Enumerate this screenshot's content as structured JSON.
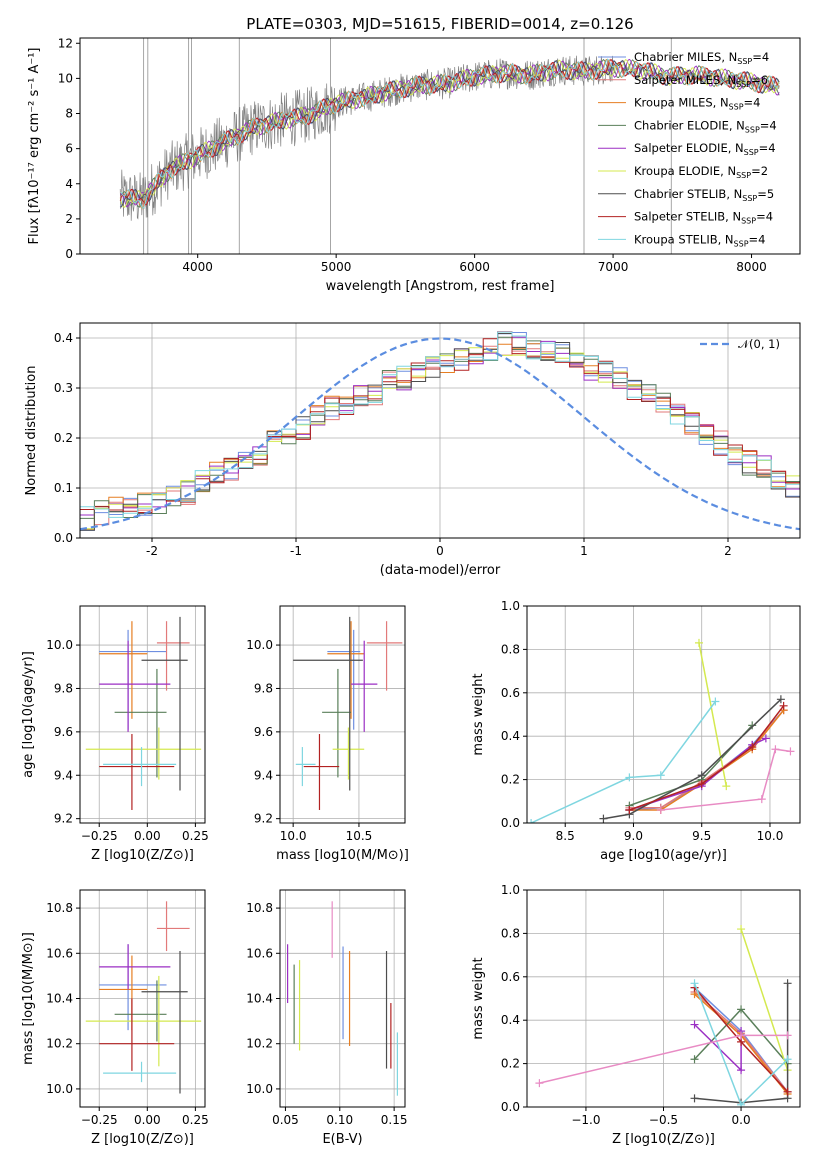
{
  "chart_data": [
    {
      "id": "spectrum",
      "type": "line",
      "title": "PLATE=0303, MJD=51615, FIBERID=0014, z=0.126",
      "xlabel": "wavelength [Angstrom, rest frame]",
      "ylabel": "Flux [fλ10⁻¹⁷ erg cm⁻² s⁻¹ A⁻¹]",
      "xlim": [
        3150,
        8350
      ],
      "ylim": [
        0,
        12.3
      ],
      "xticks": [
        4000,
        5000,
        6000,
        7000,
        8000
      ],
      "yticks": [
        0,
        2,
        4,
        6,
        8,
        10,
        12
      ],
      "legend_position": "right",
      "data_series": {
        "name": "data",
        "color": "#808080",
        "x": [
          3450,
          3600,
          3800,
          4000,
          4200,
          4400,
          4600,
          4800,
          5000,
          5200,
          5400,
          5600,
          5800,
          6000,
          6200,
          6400,
          6600,
          6800,
          7000,
          7200,
          7400,
          7600,
          7800,
          8000,
          8200
        ],
        "y": [
          3.2,
          3.1,
          4.8,
          5.6,
          6.4,
          7.2,
          7.6,
          7.9,
          8.6,
          8.9,
          9.3,
          9.6,
          9.7,
          10.1,
          10.3,
          10.2,
          10.5,
          10.4,
          10.6,
          10.5,
          10.1,
          10.2,
          10.0,
          9.8,
          9.5
        ]
      },
      "series": [
        {
          "name": "Chabrier MILES",
          "nssp": "4",
          "color": "#6f8fe0"
        },
        {
          "name": "Salpeter MILES",
          "nssp": "6",
          "color": "#e27a7a"
        },
        {
          "name": "Kroupa MILES",
          "nssp": "4",
          "color": "#e67e22"
        },
        {
          "name": "Chabrier ELODIE",
          "nssp": "4",
          "color": "#5a7f5a"
        },
        {
          "name": "Salpeter ELODIE",
          "nssp": "4",
          "color": "#9b2fc4"
        },
        {
          "name": "Kroupa ELODIE",
          "nssp": "2",
          "color": "#d4e94f"
        },
        {
          "name": "Chabrier STELIB",
          "nssp": "5",
          "color": "#4d4d4d"
        },
        {
          "name": "Salpeter STELIB",
          "nssp": "4",
          "color": "#b22222"
        },
        {
          "name": "Kroupa STELIB",
          "nssp": "4",
          "color": "#7fd6e0"
        }
      ]
    },
    {
      "id": "residuals",
      "type": "line",
      "xlabel": "(data-model)/error",
      "ylabel": "Normed distribution",
      "xlim": [
        -2.5,
        2.5
      ],
      "ylim": [
        0,
        0.43
      ],
      "xticks": [
        -2,
        -1,
        0,
        1,
        2
      ],
      "yticks": [
        0.0,
        0.1,
        0.2,
        0.3,
        0.4
      ],
      "grid": true,
      "legend": [
        {
          "label": "𝒩(0, 1)",
          "color": "#5b8de0",
          "style": "dashed"
        }
      ],
      "legend_position": "top-right",
      "hist_bin_width": 0.1,
      "hist_start": -2.5,
      "hist_values": [
        0.04,
        0.05,
        0.06,
        0.06,
        0.07,
        0.07,
        0.08,
        0.09,
        0.11,
        0.13,
        0.14,
        0.15,
        0.17,
        0.19,
        0.21,
        0.22,
        0.24,
        0.26,
        0.27,
        0.28,
        0.29,
        0.31,
        0.32,
        0.33,
        0.34,
        0.35,
        0.36,
        0.37,
        0.38,
        0.39,
        0.39,
        0.38,
        0.38,
        0.37,
        0.36,
        0.34,
        0.33,
        0.32,
        0.3,
        0.29,
        0.27,
        0.25,
        0.23,
        0.21,
        0.19,
        0.17,
        0.15,
        0.14,
        0.12,
        0.1
      ]
    },
    {
      "id": "age_vs_Z",
      "type": "scatter",
      "xlabel": "Z [log10(Z/Z⊙)]",
      "ylabel": "age  [log10(age/yr)]",
      "xlim": [
        -0.35,
        0.3
      ],
      "ylim": [
        9.18,
        10.18
      ],
      "xticks": [
        "−0.25",
        "0.00",
        "0.25"
      ],
      "xtick_values": [
        -0.25,
        0.0,
        0.25
      ],
      "yticks": [
        9.2,
        9.4,
        9.6,
        9.8,
        10.0
      ],
      "grid": true,
      "points": [
        {
          "color": "#6f8fe0",
          "x": -0.1,
          "xerr": [
            0.15,
            0.2
          ],
          "y": 9.97,
          "yerr": [
            0.36,
            0.1
          ]
        },
        {
          "color": "#e27a7a",
          "x": 0.1,
          "xerr": [
            0.05,
            0.12
          ],
          "y": 10.01,
          "yerr": [
            0.22,
            0.1
          ]
        },
        {
          "color": "#e67e22",
          "x": -0.08,
          "xerr": [
            0.17,
            0.08
          ],
          "y": 9.96,
          "yerr": [
            0.3,
            0.15
          ]
        },
        {
          "color": "#5a7f5a",
          "x": 0.05,
          "xerr": [
            0.22,
            0.05
          ],
          "y": 9.69,
          "yerr": [
            0.3,
            0.2
          ]
        },
        {
          "color": "#9b2fc4",
          "x": -0.1,
          "xerr": [
            0.15,
            0.22
          ],
          "y": 9.82,
          "yerr": [
            0.22,
            0.2
          ]
        },
        {
          "color": "#d4e94f",
          "x": 0.06,
          "xerr": [
            0.38,
            0.22
          ],
          "y": 9.52,
          "yerr": [
            0.14,
            0.1
          ]
        },
        {
          "color": "#4d4d4d",
          "x": 0.17,
          "xerr": [
            0.2,
            0.04
          ],
          "y": 9.93,
          "yerr": [
            0.6,
            0.2
          ]
        },
        {
          "color": "#b22222",
          "x": -0.08,
          "xerr": [
            0.17,
            0.22
          ],
          "y": 9.44,
          "yerr": [
            0.2,
            0.15
          ]
        },
        {
          "color": "#7fd6e0",
          "x": -0.03,
          "xerr": [
            0.2,
            0.18
          ],
          "y": 9.45,
          "yerr": [
            0.1,
            0.08
          ]
        }
      ]
    },
    {
      "id": "age_vs_mass",
      "type": "scatter",
      "xlabel": "mass [log10(M/M⊙)]",
      "xlim": [
        9.9,
        10.85
      ],
      "ylim": [
        9.18,
        10.18
      ],
      "xticks": [
        "10.0",
        "10.5"
      ],
      "xtick_values": [
        10.0,
        10.5
      ],
      "yticks": [
        9.2,
        9.4,
        9.6,
        9.8,
        10.0
      ],
      "grid": true,
      "points": [
        {
          "color": "#6f8fe0",
          "x": 10.46,
          "xerr": [
            0.2,
            0.05
          ],
          "y": 9.97,
          "yerr": [
            0.36,
            0.1
          ]
        },
        {
          "color": "#e27a7a",
          "x": 10.71,
          "xerr": [
            0.15,
            0.12
          ],
          "y": 10.01,
          "yerr": [
            0.22,
            0.1
          ]
        },
        {
          "color": "#e67e22",
          "x": 10.44,
          "xerr": [
            0.18,
            0.1
          ],
          "y": 9.96,
          "yerr": [
            0.3,
            0.15
          ]
        },
        {
          "color": "#5a7f5a",
          "x": 10.34,
          "xerr": [
            0.12,
            0.1
          ],
          "y": 9.69,
          "yerr": [
            0.3,
            0.2
          ]
        },
        {
          "color": "#9b2fc4",
          "x": 10.54,
          "xerr": [
            0.1,
            0.1
          ],
          "y": 9.82,
          "yerr": [
            0.22,
            0.2
          ]
        },
        {
          "color": "#d4e94f",
          "x": 10.42,
          "xerr": [
            0.12,
            0.12
          ],
          "y": 9.52,
          "yerr": [
            0.14,
            0.1
          ]
        },
        {
          "color": "#4d4d4d",
          "x": 10.43,
          "xerr": [
            0.43,
            0.1
          ],
          "y": 9.93,
          "yerr": [
            0.6,
            0.2
          ]
        },
        {
          "color": "#b22222",
          "x": 10.2,
          "xerr": [
            0.12,
            0.15
          ],
          "y": 9.44,
          "yerr": [
            0.2,
            0.15
          ]
        },
        {
          "color": "#7fd6e0",
          "x": 10.07,
          "xerr": [
            0.05,
            0.1
          ],
          "y": 9.45,
          "yerr": [
            0.1,
            0.08
          ]
        }
      ]
    },
    {
      "id": "weight_vs_age",
      "type": "line",
      "xlabel": "age  [log10(age/yr)]",
      "ylabel": "mass weight",
      "xlim": [
        8.22,
        10.22
      ],
      "ylim": [
        0,
        1.0
      ],
      "xticks": [
        "8.5",
        "9.0",
        "9.5",
        "10.0"
      ],
      "xtick_values": [
        8.5,
        9.0,
        9.5,
        10.0
      ],
      "yticks": [
        0.0,
        0.2,
        0.4,
        0.6,
        0.8,
        1.0
      ],
      "grid": true,
      "series": [
        {
          "color": "#6f8fe0",
          "x": [
            8.97,
            9.2,
            9.5,
            9.87,
            10.1
          ],
          "y": [
            0.06,
            0.07,
            0.18,
            0.36,
            0.52
          ]
        },
        {
          "color": "#e27a7a",
          "x": [
            8.97,
            9.2,
            9.5,
            9.87,
            10.1
          ],
          "y": [
            0.07,
            0.07,
            0.19,
            0.35,
            0.52
          ]
        },
        {
          "color": "#e67e22",
          "x": [
            8.97,
            9.2,
            9.5,
            9.87,
            10.1
          ],
          "y": [
            0.06,
            0.06,
            0.18,
            0.34,
            0.52
          ]
        },
        {
          "color": "#5a7f5a",
          "x": [
            8.97,
            9.5,
            9.87
          ],
          "y": [
            0.08,
            0.2,
            0.45
          ]
        },
        {
          "color": "#9b2fc4",
          "x": [
            8.97,
            9.5,
            9.87,
            9.97
          ],
          "y": [
            0.06,
            0.17,
            0.36,
            0.39
          ]
        },
        {
          "color": "#d4e94f",
          "x": [
            9.48,
            9.68
          ],
          "y": [
            0.83,
            0.17
          ]
        },
        {
          "color": "#4d4d4d",
          "x": [
            8.78,
            8.97,
            9.5,
            10.08
          ],
          "y": [
            0.02,
            0.04,
            0.22,
            0.57
          ]
        },
        {
          "color": "#b22222",
          "x": [
            8.97,
            9.5,
            9.87,
            10.1
          ],
          "y": [
            0.06,
            0.18,
            0.35,
            0.54
          ]
        },
        {
          "color": "#7fd6e0",
          "x": [
            8.25,
            8.97,
            9.2,
            9.6
          ],
          "y": [
            0.0,
            0.21,
            0.22,
            0.56
          ]
        },
        {
          "color": "#e88bc4",
          "x": [
            9.2,
            9.94,
            10.04,
            10.15
          ],
          "y": [
            0.06,
            0.11,
            0.34,
            0.33
          ]
        }
      ]
    },
    {
      "id": "mass_vs_Z",
      "type": "scatter",
      "xlabel": "Z [log10(Z/Z⊙)]",
      "ylabel": "mass [log10(M/M⊙)]",
      "xlim": [
        -0.35,
        0.3
      ],
      "ylim": [
        9.92,
        10.88
      ],
      "xticks": [
        "−0.25",
        "0.00",
        "0.25"
      ],
      "xtick_values": [
        -0.25,
        0.0,
        0.25
      ],
      "yticks": [
        10.0,
        10.2,
        10.4,
        10.6,
        10.8
      ],
      "grid": true,
      "points": [
        {
          "color": "#6f8fe0",
          "x": -0.1,
          "xerr": [
            0.15,
            0.2
          ],
          "y": 10.46,
          "yerr": [
            0.2,
            0.18
          ]
        },
        {
          "color": "#e27a7a",
          "x": 0.1,
          "xerr": [
            0.05,
            0.12
          ],
          "y": 10.71,
          "yerr": [
            0.1,
            0.12
          ]
        },
        {
          "color": "#e67e22",
          "x": -0.08,
          "xerr": [
            0.17,
            0.08
          ],
          "y": 10.44,
          "yerr": [
            0.18,
            0.15
          ]
        },
        {
          "color": "#5a7f5a",
          "x": 0.05,
          "xerr": [
            0.22,
            0.05
          ],
          "y": 10.33,
          "yerr": [
            0.12,
            0.15
          ]
        },
        {
          "color": "#9b2fc4",
          "x": -0.1,
          "xerr": [
            0.15,
            0.22
          ],
          "y": 10.54,
          "yerr": [
            0.1,
            0.1
          ]
        },
        {
          "color": "#d4e94f",
          "x": 0.06,
          "xerr": [
            0.38,
            0.22
          ],
          "y": 10.3,
          "yerr": [
            0.2,
            0.2
          ]
        },
        {
          "color": "#4d4d4d",
          "x": 0.17,
          "xerr": [
            0.2,
            0.04
          ],
          "y": 10.43,
          "yerr": [
            0.45,
            0.18
          ]
        },
        {
          "color": "#b22222",
          "x": -0.08,
          "xerr": [
            0.17,
            0.22
          ],
          "y": 10.2,
          "yerr": [
            0.12,
            0.2
          ]
        },
        {
          "color": "#7fd6e0",
          "x": -0.03,
          "xerr": [
            0.2,
            0.18
          ],
          "y": 10.07,
          "yerr": [
            0.04,
            0.05
          ]
        }
      ]
    },
    {
      "id": "mass_vs_EBV",
      "type": "scatter",
      "xlabel": "E(B-V)",
      "xlim": [
        0.045,
        0.16
      ],
      "ylim": [
        9.92,
        10.88
      ],
      "xticks": [
        "0.05",
        "0.10",
        "0.15"
      ],
      "xtick_values": [
        0.05,
        0.1,
        0.15
      ],
      "yticks": [
        10.0,
        10.2,
        10.4,
        10.6,
        10.8
      ],
      "grid": true,
      "points": [
        {
          "color": "#9b2fc4",
          "x": 0.052,
          "y": 10.52,
          "yerr": [
            0.14,
            0.12
          ]
        },
        {
          "color": "#5a7f5a",
          "x": 0.058,
          "y": 10.37,
          "yerr": [
            0.17,
            0.18
          ]
        },
        {
          "color": "#d4e94f",
          "x": 0.063,
          "y": 10.37,
          "yerr": [
            0.2,
            0.2
          ]
        },
        {
          "color": "#e88bc4",
          "x": 0.093,
          "y": 10.7,
          "yerr": [
            0.12,
            0.13
          ]
        },
        {
          "color": "#6f8fe0",
          "x": 0.103,
          "y": 10.43,
          "yerr": [
            0.21,
            0.2
          ]
        },
        {
          "color": "#e67e22",
          "x": 0.109,
          "y": 10.4,
          "yerr": [
            0.21,
            0.21
          ]
        },
        {
          "color": "#4d4d4d",
          "x": 0.143,
          "y": 10.4,
          "yerr": [
            0.31,
            0.21
          ]
        },
        {
          "color": "#b22222",
          "x": 0.147,
          "y": 10.24,
          "yerr": [
            0.15,
            0.14
          ]
        },
        {
          "color": "#7fd6e0",
          "x": 0.153,
          "y": 10.11,
          "yerr": [
            0.14,
            0.14
          ]
        }
      ]
    },
    {
      "id": "weight_vs_Z",
      "type": "line",
      "xlabel": "Z [log10(Z/Z⊙)]",
      "ylabel": "mass weight",
      "xlim": [
        -1.38,
        0.38
      ],
      "ylim": [
        0,
        1.0
      ],
      "xticks": [
        "−1.0",
        "−0.5",
        "0.0"
      ],
      "xtick_values": [
        -1.0,
        -0.5,
        0.0
      ],
      "yticks": [
        0.0,
        0.2,
        0.4,
        0.6,
        0.8,
        1.0
      ],
      "grid": true,
      "series": [
        {
          "color": "#6f8fe0",
          "x": [
            -0.3,
            0.0,
            0.3
          ],
          "y": [
            0.55,
            0.35,
            0.07
          ]
        },
        {
          "color": "#e27a7a",
          "x": [
            -0.3,
            0.0,
            0.3
          ],
          "y": [
            0.53,
            0.34,
            0.07
          ]
        },
        {
          "color": "#e67e22",
          "x": [
            -0.3,
            0.0,
            0.3
          ],
          "y": [
            0.52,
            0.33,
            0.06
          ]
        },
        {
          "color": "#5a7f5a",
          "x": [
            -0.3,
            0.0,
            0.3
          ],
          "y": [
            0.22,
            0.45,
            0.2
          ]
        },
        {
          "color": "#9b2fc4",
          "x": [
            -0.3,
            0.0,
            0.0
          ],
          "y": [
            0.38,
            0.17,
            0.35
          ]
        },
        {
          "color": "#d4e94f",
          "x": [
            0.0,
            0.3
          ],
          "y": [
            0.82,
            0.17
          ]
        },
        {
          "color": "#4d4d4d",
          "x": [
            -0.3,
            0.0,
            0.3,
            0.3
          ],
          "y": [
            0.04,
            0.02,
            0.04,
            0.57
          ]
        },
        {
          "color": "#b22222",
          "x": [
            -0.3,
            0.0,
            0.3
          ],
          "y": [
            0.55,
            0.3,
            0.07
          ]
        },
        {
          "color": "#7fd6e0",
          "x": [
            -0.3,
            0.0,
            0.3
          ],
          "y": [
            0.57,
            0.01,
            0.22
          ]
        },
        {
          "color": "#e88bc4",
          "x": [
            -1.3,
            0.0,
            0.3
          ],
          "y": [
            0.11,
            0.33,
            0.33
          ]
        }
      ]
    }
  ]
}
